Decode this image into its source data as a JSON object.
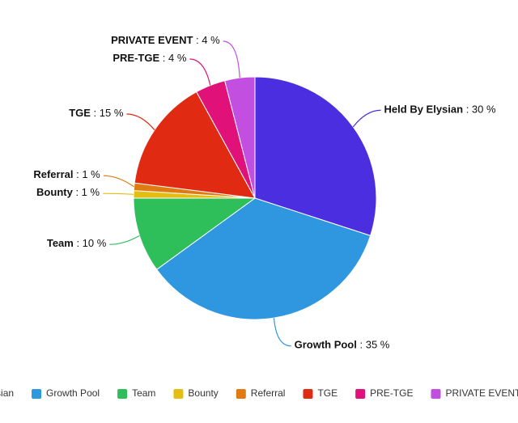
{
  "chart_data": {
    "type": "pie",
    "categories": [
      "Held By Elysian",
      "Growth Pool",
      "Team",
      "Bounty",
      "Referral",
      "TGE",
      "PRE-TGE",
      "PRIVATE EVENT"
    ],
    "values": [
      30,
      35,
      10,
      1,
      1,
      15,
      4,
      4
    ],
    "value_labels": [
      ": 30 %",
      ": 35 %",
      ": 10 %",
      ": 1 %",
      ": 1 %",
      ": 15 %",
      ": 4 %",
      ": 4 %"
    ],
    "colors": [
      "#4a2ee0",
      "#2f96e0",
      "#2fbf5a",
      "#e2bf12",
      "#e07a12",
      "#e02a12",
      "#e0127a",
      "#c24fe0"
    ]
  }
}
